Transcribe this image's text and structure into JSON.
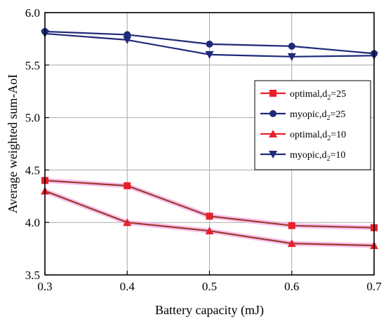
{
  "chart_data": {
    "type": "line",
    "xlabel": "Battery capacity (mJ)",
    "ylabel": "Average weighted sum-AoI",
    "xlim": [
      0.3,
      0.7
    ],
    "ylim": [
      3.5,
      6.0
    ],
    "x_ticks": [
      "0.3",
      "0.4",
      "0.5",
      "0.6",
      "0.7"
    ],
    "y_ticks": [
      "3.5",
      "4.0",
      "4.5",
      "5.0",
      "5.5",
      "6.0"
    ],
    "grid": true,
    "legend_position": "right",
    "x": [
      0.3,
      0.4,
      0.5,
      0.6,
      0.7
    ],
    "series": [
      {
        "name_main": "optimal,d",
        "name_sub": "2",
        "name_tail": "=25",
        "marker": "square",
        "color": "#e8202a",
        "values": [
          4.4,
          4.35,
          4.06,
          3.97,
          3.95
        ]
      },
      {
        "name_main": "myopic,d",
        "name_sub": "2",
        "name_tail": "=25",
        "marker": "circle",
        "color": "#1f2a78",
        "values": [
          5.82,
          5.79,
          5.7,
          5.68,
          5.61
        ]
      },
      {
        "name_main": "optimal,d",
        "name_sub": "2",
        "name_tail": "=10",
        "marker": "triangle-up",
        "color": "#e8202a",
        "values": [
          4.3,
          4.0,
          3.92,
          3.8,
          3.78
        ]
      },
      {
        "name_main": "myopic,d",
        "name_sub": "2",
        "name_tail": "=10",
        "marker": "triangle-down",
        "color": "#1f2a78",
        "values": [
          5.8,
          5.74,
          5.6,
          5.58,
          5.59
        ]
      }
    ]
  }
}
